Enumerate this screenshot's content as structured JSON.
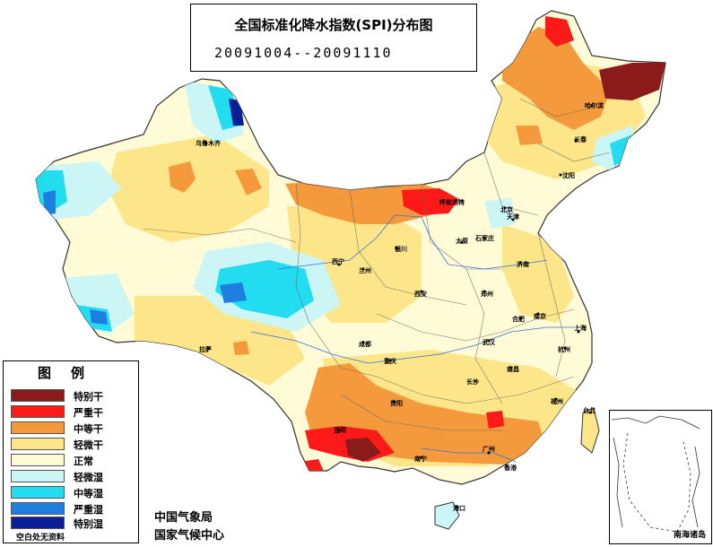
{
  "title": "全国标准化降水指数(SPI)分布图",
  "date_range": "20091004--20091110",
  "legend": {
    "title": "图例",
    "items": [
      {
        "label": "特别干",
        "color": "#8b1a1a"
      },
      {
        "label": "严重干",
        "color": "#ff1a1a"
      },
      {
        "label": "中等干",
        "color": "#f59a3c"
      },
      {
        "label": "轻微干",
        "color": "#fde68a"
      },
      {
        "label": "正常",
        "color": "#fffbd6"
      },
      {
        "label": "轻微湿",
        "color": "#ccf5f5"
      },
      {
        "label": "中等湿",
        "color": "#22dcf0"
      },
      {
        "label": "严重湿",
        "color": "#1e7fe0"
      },
      {
        "label": "特别湿",
        "color": "#0a1e9a"
      }
    ],
    "note": "空白处无资料"
  },
  "credits": [
    "中国气象局",
    "国家气候中心"
  ],
  "inset_label": "南海诸岛",
  "cities": [
    "乌鲁木齐",
    "拉萨",
    "西宁",
    "兰州",
    "银川",
    "呼和浩特",
    "太原",
    "石家庄",
    "北京",
    "天津",
    "沈阳",
    "长春",
    "哈尔滨",
    "济南",
    "郑州",
    "西安",
    "成都",
    "重庆",
    "贵阳",
    "昆明",
    "南宁",
    "广州",
    "香港",
    "海口",
    "长沙",
    "武汉",
    "南昌",
    "合肥",
    "南京",
    "上海",
    "杭州",
    "福州",
    "台北"
  ]
}
